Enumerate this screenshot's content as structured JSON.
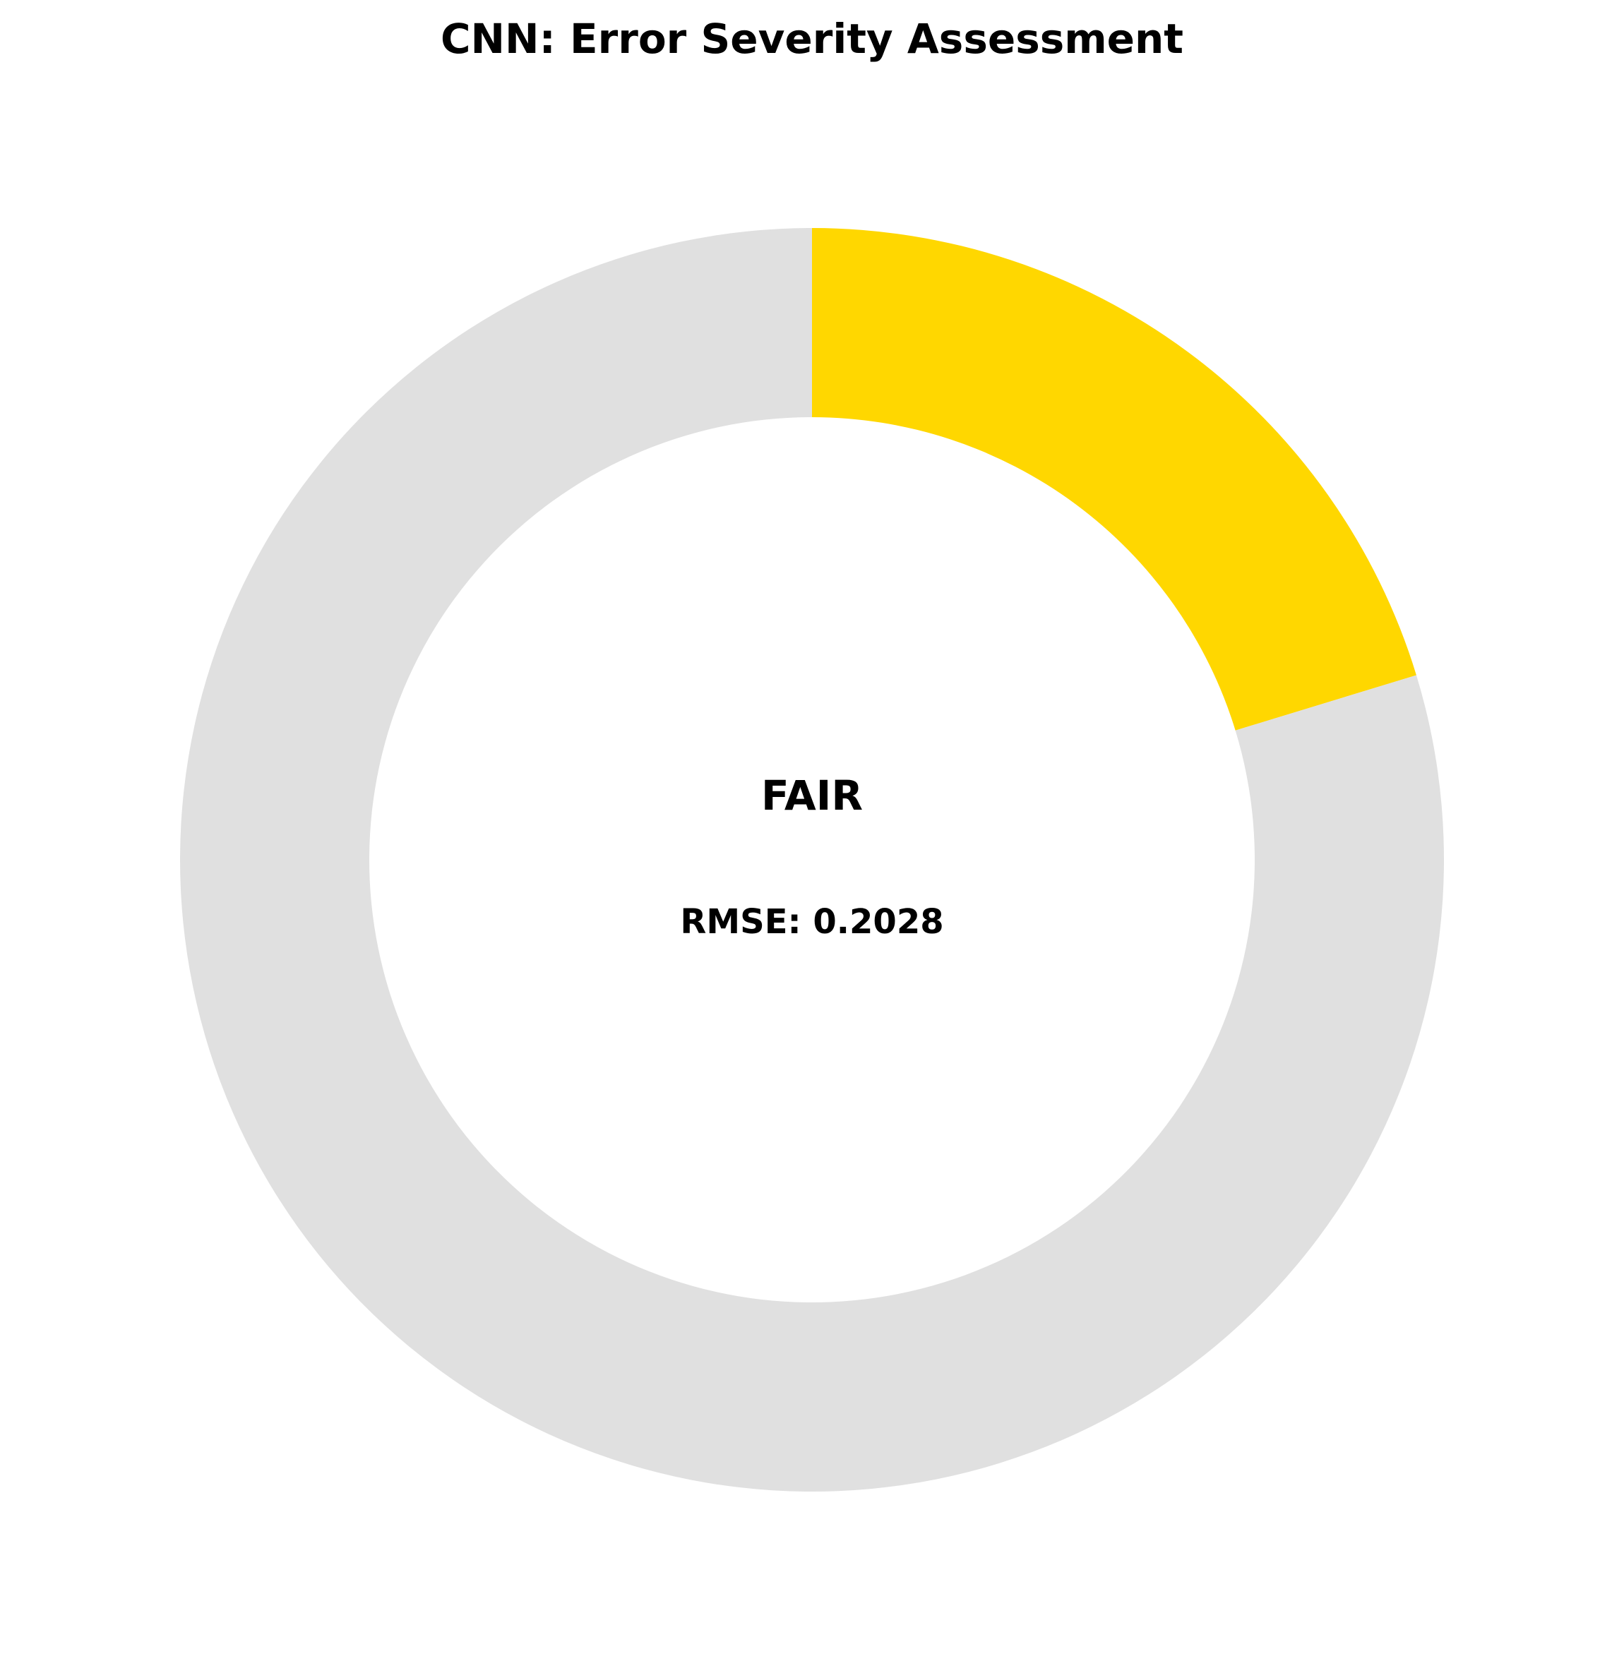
{
  "chart_data": {
    "type": "pie",
    "variant": "donut",
    "title": "CNN: Error Severity Assessment",
    "slices": [
      {
        "value": 0.2028,
        "color": "#FFD700"
      },
      {
        "value": 0.7972,
        "color": "#E0E0E0"
      }
    ],
    "start_angle_deg": 90,
    "direction": "clockwise",
    "center_label": "FAIR",
    "center_metric": "RMSE: 0.2028"
  }
}
